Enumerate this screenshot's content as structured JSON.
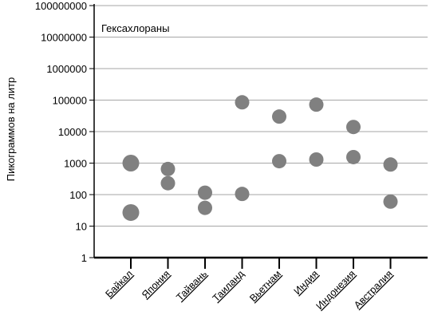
{
  "chart_data": {
    "type": "scatter",
    "title": "Гексахлораны",
    "xlabel": "",
    "ylabel": "Пикограммов на литр",
    "y_scale": "log",
    "ylim": [
      1,
      100000000
    ],
    "grid": true,
    "categories": [
      "Байкал",
      "Япония",
      "Тайвань",
      "Таиланд",
      "Вьетнам",
      "Индия",
      "Индонезия",
      "Австралия"
    ],
    "y_tick_labels": [
      "1",
      "10",
      "100",
      "1000",
      "10000",
      "100000",
      "1000000",
      "10000000",
      "100000000"
    ],
    "points": [
      {
        "category": "Байкал",
        "y": 1000,
        "size": "large"
      },
      {
        "category": "Байкал",
        "y": 27,
        "size": "large"
      },
      {
        "category": "Япония",
        "y": 650,
        "size": "small"
      },
      {
        "category": "Япония",
        "y": 230,
        "size": "small"
      },
      {
        "category": "Тайвань",
        "y": 115,
        "size": "small"
      },
      {
        "category": "Тайвань",
        "y": 38,
        "size": "small"
      },
      {
        "category": "Таиланд",
        "y": 85000,
        "size": "small"
      },
      {
        "category": "Таиланд",
        "y": 105,
        "size": "small"
      },
      {
        "category": "Вьетнам",
        "y": 30000,
        "size": "small"
      },
      {
        "category": "Вьетнам",
        "y": 1150,
        "size": "small"
      },
      {
        "category": "Индия",
        "y": 72000,
        "size": "small"
      },
      {
        "category": "Индия",
        "y": 1300,
        "size": "small"
      },
      {
        "category": "Индонезия",
        "y": 14000,
        "size": "small"
      },
      {
        "category": "Индонезия",
        "y": 1550,
        "size": "small"
      },
      {
        "category": "Австралия",
        "y": 900,
        "size": "small"
      },
      {
        "category": "Австралия",
        "y": 60,
        "size": "small"
      }
    ],
    "colors": {
      "marker": "#808080",
      "grid": "#a6a6a6",
      "axis": "#000000",
      "text": "#000000"
    }
  }
}
